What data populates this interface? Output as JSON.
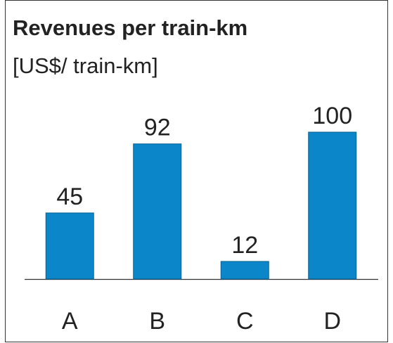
{
  "chart_data": {
    "type": "bar",
    "title": "Revenues per train-km",
    "subtitle": "[US$/ train-km]",
    "categories": [
      "A",
      "B",
      "C",
      "D"
    ],
    "values": [
      45,
      92,
      12,
      100
    ],
    "color": "#0a86c9"
  }
}
